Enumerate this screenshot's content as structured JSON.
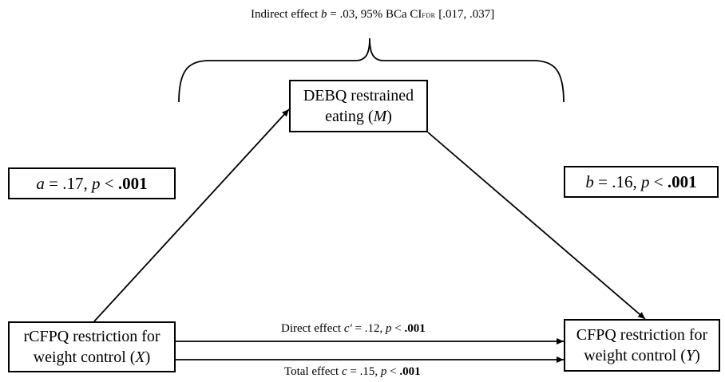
{
  "indirect_effect": {
    "prefix": "Indirect effect ",
    "symbol": "b",
    "value": " = .03, 95%  BCa CI",
    "subscript": "FDR",
    "interval": " [.017, .037]"
  },
  "mediator": {
    "line1": "DEBQ restrained",
    "line2_text": "eating (",
    "line2_var": "M",
    "line2_end": ")"
  },
  "predictor": {
    "line1": "rCFPQ restriction for",
    "line2_text": "weight control  (",
    "line2_var": "X",
    "line2_end": ")"
  },
  "outcome": {
    "line1": "CFPQ restriction for",
    "line2_text": "weight control (",
    "line2_var": "Y",
    "line2_end": ")"
  },
  "path_a": {
    "symbol": "a",
    "eq": " = .17, ",
    "p": "p",
    "rel": " < ",
    "pval": ".001"
  },
  "path_b": {
    "symbol": "b",
    "eq": " = .16, ",
    "p": "p",
    "rel": " < ",
    "pval": ".001"
  },
  "direct_effect": {
    "prefix": "Direct effect ",
    "symbol": "c′",
    "eq": " = .12, ",
    "p": "p",
    "rel": " < ",
    "pval": ".001"
  },
  "total_effect": {
    "prefix": "Total effect ",
    "symbol": "c",
    "eq": " = .15, ",
    "p": "p",
    "rel": " < ",
    "pval": ".001"
  }
}
